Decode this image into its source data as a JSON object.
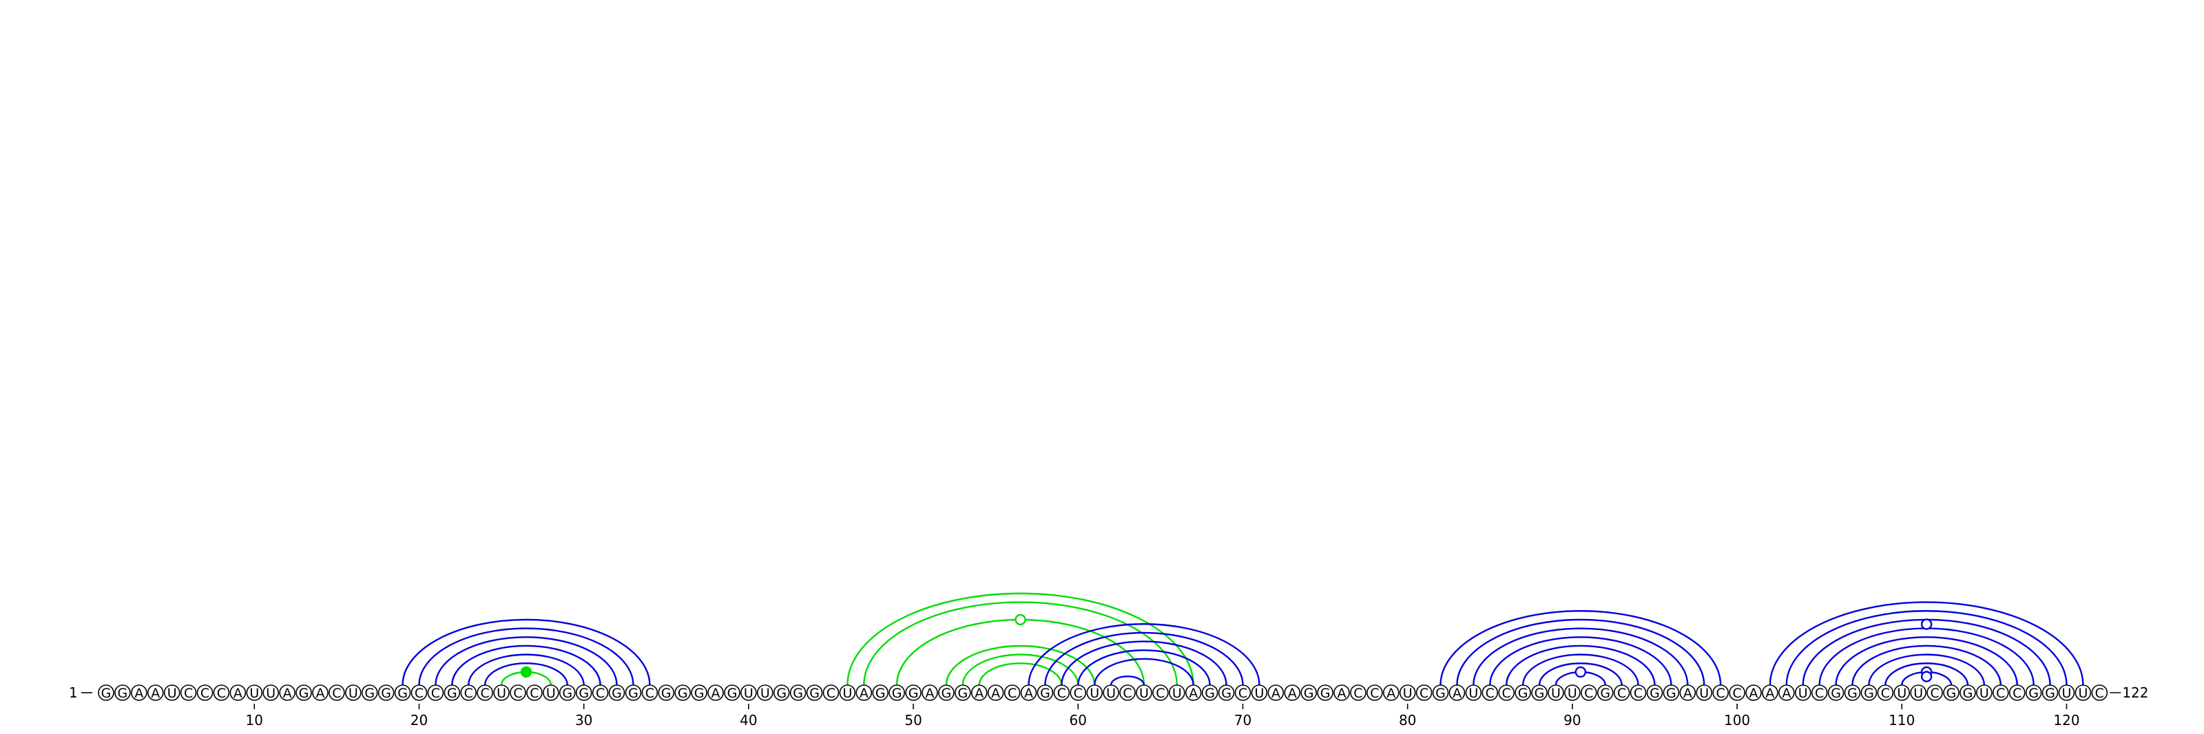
{
  "sequence": "GGAAUCCCAUUAGACUGGGCCGCCUCCUGGCGGCGGGAGUUGGGCUAGGGAGGAACAGCCUUCUCUAGGCUAAGGACCAUCGAUCCGGUUCGCCGGAUCCAAAUCGGGCUUCGGUCCGGUUC",
  "start_label": "1",
  "end_label": "122",
  "axis_ticks": [
    10,
    20,
    30,
    40,
    50,
    60,
    70,
    80,
    90,
    100,
    110,
    120
  ],
  "colors": {
    "blue": "#0000dd",
    "green": "#00dd00",
    "text": "#000000",
    "background": "#ffffff"
  },
  "helices": [
    {
      "name": "helix-a-blue",
      "color": "blue",
      "pairs": [
        [
          19,
          34
        ],
        [
          20,
          33
        ],
        [
          21,
          32
        ],
        [
          22,
          31
        ],
        [
          23,
          30
        ],
        [
          24,
          29
        ]
      ]
    },
    {
      "name": "helix-a-green",
      "color": "green",
      "pairs": [
        [
          25,
          28
        ]
      ],
      "marker": "filled"
    },
    {
      "name": "pseudoknot-green",
      "color": "green",
      "pairs": [
        [
          46,
          67
        ],
        [
          47,
          66
        ],
        [
          49,
          64
        ]
      ],
      "marker": "open"
    },
    {
      "name": "inner-green",
      "color": "green",
      "pairs": [
        [
          52,
          61
        ],
        [
          53,
          60
        ],
        [
          54,
          59
        ]
      ]
    },
    {
      "name": "helix-b-blue",
      "color": "blue",
      "pairs": [
        [
          57,
          71
        ],
        [
          58,
          70
        ],
        [
          59,
          69
        ],
        [
          60,
          68
        ],
        [
          61,
          67
        ],
        [
          62,
          64
        ]
      ]
    },
    {
      "name": "helix-c-blue",
      "color": "blue",
      "pairs": [
        [
          82,
          99
        ],
        [
          83,
          98
        ],
        [
          84,
          97
        ],
        [
          85,
          96
        ],
        [
          86,
          95
        ],
        [
          87,
          94
        ],
        [
          88,
          93
        ],
        [
          89,
          92
        ]
      ],
      "marker": "open"
    },
    {
      "name": "helix-d-blue",
      "color": "blue",
      "pairs": [
        [
          102,
          121
        ],
        [
          103,
          120
        ],
        [
          104,
          119
        ],
        [
          105,
          118
        ],
        [
          106,
          117
        ],
        [
          107,
          116
        ],
        [
          108,
          115
        ],
        [
          109,
          114
        ],
        [
          110,
          113
        ]
      ],
      "marker": "open"
    }
  ]
}
